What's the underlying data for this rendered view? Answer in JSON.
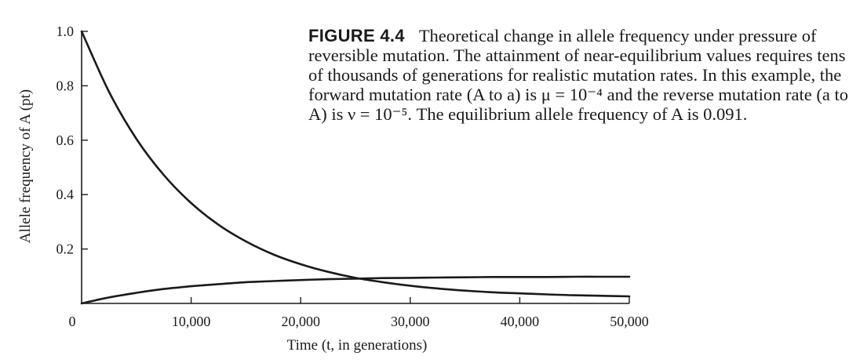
{
  "chart_data": {
    "type": "line",
    "caption": {
      "label": "FIGURE 4.4",
      "text": "Theoretical change in allele frequency under pressure of reversible mutation. The attainment of near-equilibrium values requires tens of thousands of generations for realistic mutation rates. In this example, the forward mutation rate (A to a) is μ = 10⁻⁴ and the reverse mutation rate (a to A) is ν = 10⁻⁵. The equilibrium allele frequency of A is 0.091."
    },
    "xlabel": "Time (t, in generations)",
    "ylabel": "Allele frequency of A (pt)",
    "xlim": [
      0,
      50000
    ],
    "ylim": [
      0,
      1.0
    ],
    "x_ticks": [
      0,
      10000,
      20000,
      30000,
      40000,
      50000
    ],
    "x_tick_labels": [
      "0",
      "10,000",
      "20,000",
      "30,000",
      "40,000",
      "50,000"
    ],
    "y_ticks": [
      0.2,
      0.4,
      0.6,
      0.8,
      1.0
    ],
    "y_tick_labels": [
      "0.2",
      "0.4",
      "0.6",
      "0.8",
      "1.0"
    ],
    "grid": false,
    "x": [
      0,
      2500,
      5000,
      7500,
      10000,
      12500,
      15000,
      17500,
      20000,
      22500,
      25000,
      27500,
      30000,
      32500,
      35000,
      37500,
      40000,
      42500,
      45000,
      47500,
      50000
    ],
    "series": [
      {
        "values": [
          1.0,
          0.778,
          0.605,
          0.472,
          0.369,
          0.289,
          0.228,
          0.18,
          0.144,
          0.116,
          0.094,
          0.078,
          0.065,
          0.055,
          0.047,
          0.041,
          0.037,
          0.033,
          0.03,
          0.028,
          0.026
        ]
      },
      {
        "values": [
          0.0,
          0.022,
          0.039,
          0.053,
          0.063,
          0.071,
          0.078,
          0.082,
          0.086,
          0.089,
          0.091,
          0.093,
          0.094,
          0.095,
          0.096,
          0.097,
          0.097,
          0.097,
          0.098,
          0.098,
          0.098
        ]
      }
    ],
    "colors": {
      "line": "#1a1a1a",
      "axis": "#1a1a1a"
    }
  }
}
